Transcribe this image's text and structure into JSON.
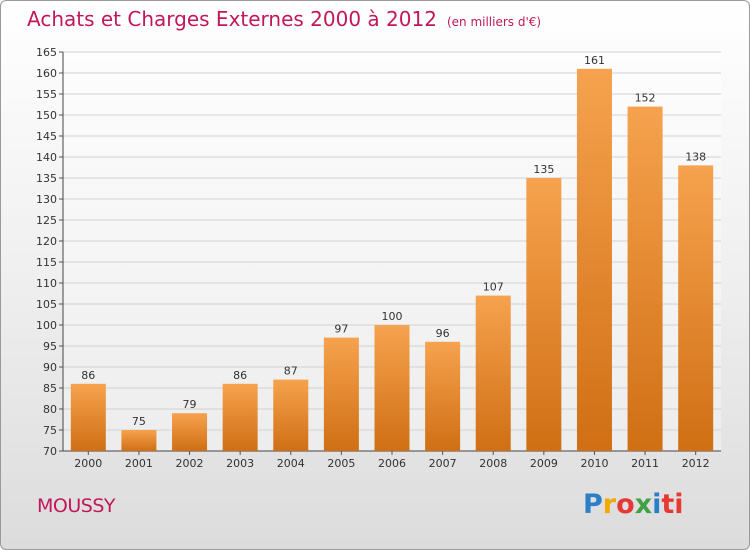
{
  "header": {
    "title": "Achats et Charges Externes 2000 à 2012",
    "subtitle": "(en milliers d'€)"
  },
  "footer": {
    "place": "MOUSSY",
    "logo": [
      "P",
      "r",
      "o",
      "x",
      "i",
      "ti"
    ]
  },
  "colors": {
    "bar_top": "#f6a24e",
    "bar_bottom": "#d06f14",
    "title": "#c2185b"
  },
  "chart_data": {
    "type": "bar",
    "title": "Achats et Charges Externes 2000 à 2012",
    "subtitle": "(en milliers d'€)",
    "xlabel": "",
    "ylabel": "",
    "categories": [
      "2000",
      "2001",
      "2002",
      "2003",
      "2004",
      "2005",
      "2006",
      "2007",
      "2008",
      "2009",
      "2010",
      "2011",
      "2012"
    ],
    "values": [
      86,
      75,
      79,
      86,
      87,
      97,
      100,
      96,
      107,
      135,
      161,
      152,
      138
    ],
    "ylim": [
      70,
      165
    ],
    "yticks": [
      70,
      75,
      80,
      85,
      90,
      95,
      100,
      105,
      110,
      115,
      120,
      125,
      130,
      135,
      140,
      145,
      150,
      155,
      160,
      165
    ],
    "grid": true,
    "legend": "none"
  }
}
